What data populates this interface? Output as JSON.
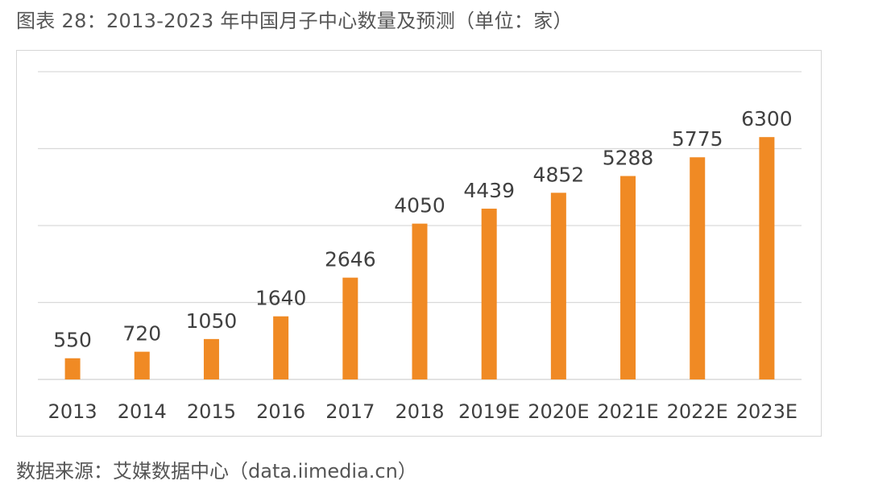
{
  "page": {
    "title": "图表 28：2013-2023 年中国月子中心数量及预测（单位：家）",
    "source": "数据来源：艾媒数据中心（data.iimedia.cn）"
  },
  "chart_data": {
    "type": "bar",
    "title": "2013-2023 年中国月子中心数量及预测（单位：家）",
    "categories": [
      "2013",
      "2014",
      "2015",
      "2016",
      "2017",
      "2018",
      "2019E",
      "2020E",
      "2021E",
      "2022E",
      "2023E"
    ],
    "values": [
      550,
      720,
      1050,
      1640,
      2646,
      4050,
      4439,
      4852,
      5288,
      5775,
      6300
    ],
    "ylim": [
      0,
      8000
    ],
    "y_gridlines": [
      0,
      2000,
      4000,
      6000,
      8000
    ],
    "xlabel": "",
    "ylabel": "",
    "bar_color": "#f08a24",
    "grid_color": "#d9d9d9",
    "legend": "none"
  }
}
